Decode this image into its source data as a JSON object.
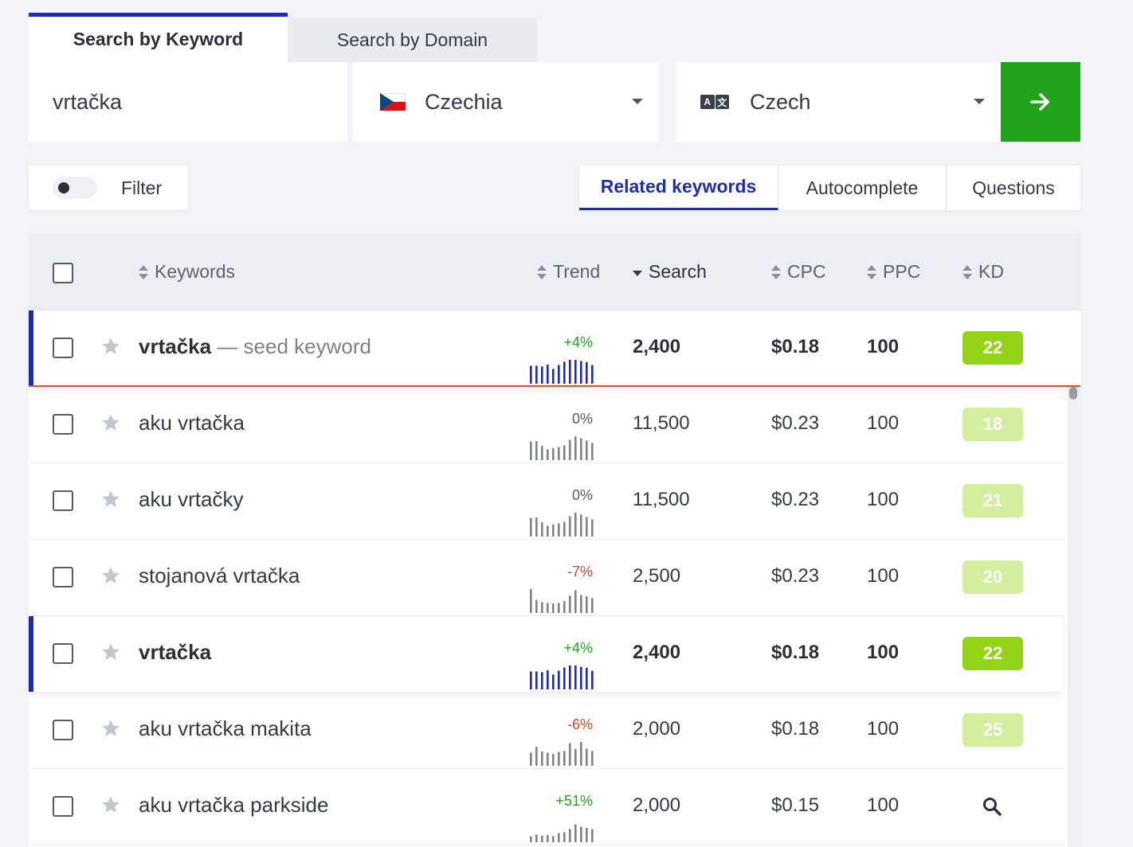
{
  "tabs": {
    "keyword": "Search by Keyword",
    "domain": "Search by Domain"
  },
  "search": {
    "keyword_value": "vrtačka",
    "country": "Czechia",
    "language": "Czech",
    "language_icon_glyphs": [
      "A",
      "文"
    ]
  },
  "filter": {
    "label": "Filter",
    "enabled": false
  },
  "mode_tabs": [
    "Related keywords",
    "Autocomplete",
    "Questions"
  ],
  "active_mode": "Related keywords",
  "columns": {
    "keywords": "Keywords",
    "trend": "Trend",
    "search": "Search",
    "cpc": "CPC",
    "ppc": "PPC",
    "kd": "KD"
  },
  "sorted_by": "Search",
  "colors": {
    "accent_blue": "#1a2bb5",
    "go_green": "#21a31b",
    "kd_strong": "#95d319",
    "kd_light": "#d3ee9e",
    "trend_positive": "#21a31b",
    "trend_negative": "#d9442a"
  },
  "rows": [
    {
      "keyword": "vrtačka",
      "suffix": " — seed keyword",
      "trend": "+4%",
      "trend_dir": "pos",
      "bars": [
        0.75,
        0.75,
        0.72,
        0.8,
        0.62,
        0.78,
        0.92,
        1,
        1,
        0.95,
        0.9,
        0.78
      ],
      "search": "2,400",
      "cpc": "$0.18",
      "ppc": "100",
      "kd": "22",
      "kd_level": "strong",
      "type": "seed"
    },
    {
      "keyword": "aku vrtačka",
      "suffix": "",
      "trend": "0%",
      "trend_dir": "zero",
      "bars": [
        0.78,
        0.8,
        0.6,
        0.45,
        0.5,
        0.55,
        0.62,
        0.85,
        1,
        0.92,
        0.82,
        0.72
      ],
      "search": "11,500",
      "cpc": "$0.23",
      "ppc": "100",
      "kd": "18",
      "kd_level": "light",
      "type": "normal"
    },
    {
      "keyword": "aku vrtačky",
      "suffix": "",
      "trend": "0%",
      "trend_dir": "zero",
      "bars": [
        0.78,
        0.8,
        0.6,
        0.45,
        0.5,
        0.55,
        0.62,
        0.85,
        1,
        0.92,
        0.82,
        0.72
      ],
      "search": "11,500",
      "cpc": "$0.23",
      "ppc": "100",
      "kd": "21",
      "kd_level": "light",
      "type": "normal"
    },
    {
      "keyword": "stojanová vrtačka",
      "suffix": "",
      "trend": "-7%",
      "trend_dir": "neg",
      "bars": [
        1,
        0.55,
        0.45,
        0.42,
        0.4,
        0.42,
        0.5,
        0.72,
        0.95,
        0.75,
        0.7,
        0.62
      ],
      "search": "2,500",
      "cpc": "$0.23",
      "ppc": "100",
      "kd": "20",
      "kd_level": "light",
      "type": "normal"
    },
    {
      "keyword": "vrtačka",
      "suffix": "",
      "trend": "+4%",
      "trend_dir": "pos",
      "bars": [
        0.75,
        0.75,
        0.72,
        0.8,
        0.62,
        0.78,
        0.92,
        1,
        1,
        0.95,
        0.9,
        0.78
      ],
      "search": "2,400",
      "cpc": "$0.18",
      "ppc": "100",
      "kd": "22",
      "kd_level": "strong",
      "type": "highlight"
    },
    {
      "keyword": "aku vrtačka makita",
      "suffix": "",
      "trend": "-6%",
      "trend_dir": "neg",
      "bars": [
        0.55,
        0.8,
        0.6,
        0.55,
        0.5,
        0.58,
        0.62,
        0.95,
        0.7,
        1,
        0.72,
        0.62
      ],
      "search": "2,000",
      "cpc": "$0.18",
      "ppc": "100",
      "kd": "25",
      "kd_level": "light",
      "type": "normal"
    },
    {
      "keyword": "aku vrtačka parkside",
      "suffix": "",
      "trend": "+51%",
      "trend_dir": "pos",
      "bars": [
        0.25,
        0.32,
        0.28,
        0.3,
        0.26,
        0.38,
        0.42,
        0.55,
        0.75,
        0.65,
        0.6,
        0.55
      ],
      "search": "2,000",
      "cpc": "$0.15",
      "ppc": "100",
      "kd": "",
      "kd_level": "search-icon",
      "type": "normal"
    }
  ]
}
